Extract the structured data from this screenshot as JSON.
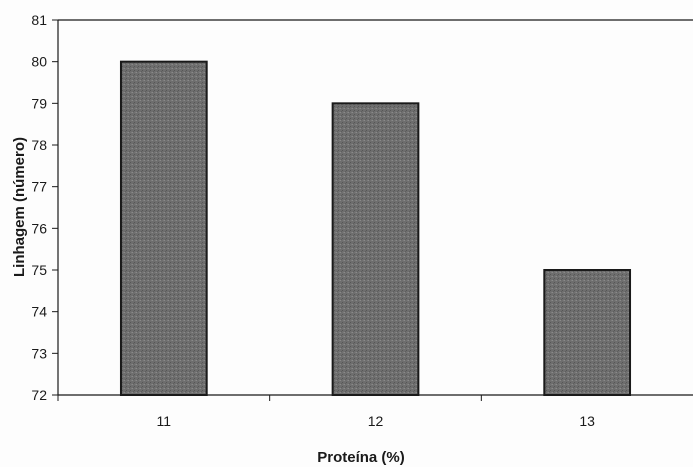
{
  "chart_data": {
    "type": "bar",
    "categories": [
      "11",
      "12",
      "13"
    ],
    "values": [
      80,
      79,
      75
    ],
    "xlabel": "Proteína (%)",
    "ylabel": "Linhagem (número)",
    "ylim": [
      72,
      81
    ],
    "yticks": [
      72,
      73,
      74,
      75,
      76,
      77,
      78,
      79,
      80,
      81
    ],
    "grid": false,
    "legend": "none",
    "colors": {
      "bar_fill": "#6e6e6e",
      "bar_stroke": "#1a1a1a",
      "axis": "#1a1a1a",
      "background": "#fdfdfd"
    }
  }
}
